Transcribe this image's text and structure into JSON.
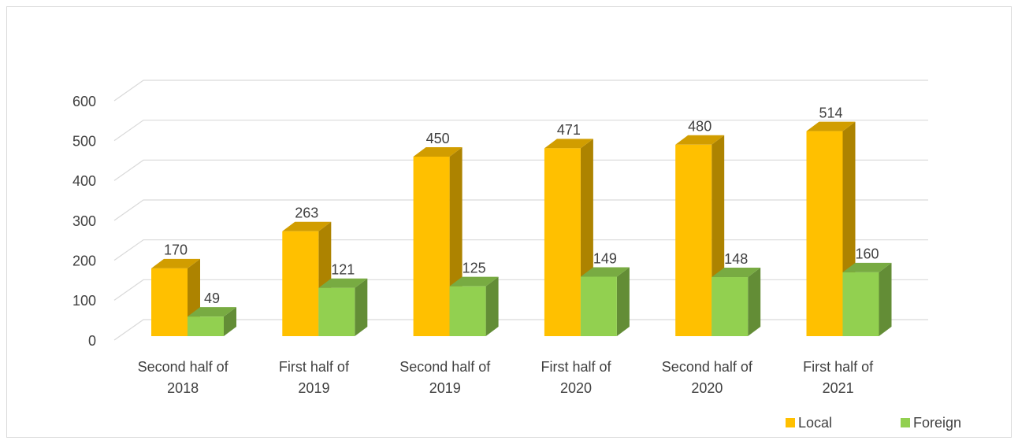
{
  "chart_data": {
    "type": "bar3d",
    "categories": [
      "Second half of 2018",
      "First half of 2019",
      "Second half of 2019",
      "First half of 2020",
      "Second half of 2020",
      "First half of 2021"
    ],
    "series": [
      {
        "name": "Local",
        "color": "#FFC000",
        "values": [
          170,
          263,
          450,
          471,
          480,
          514
        ]
      },
      {
        "name": "Foreign",
        "color": "#92D050",
        "values": [
          49,
          121,
          125,
          149,
          148,
          160
        ]
      }
    ],
    "ylim": [
      0,
      600
    ],
    "yticks": [
      0,
      100,
      200,
      300,
      400,
      500,
      600
    ],
    "grid": true,
    "legend": "bottom-right"
  }
}
